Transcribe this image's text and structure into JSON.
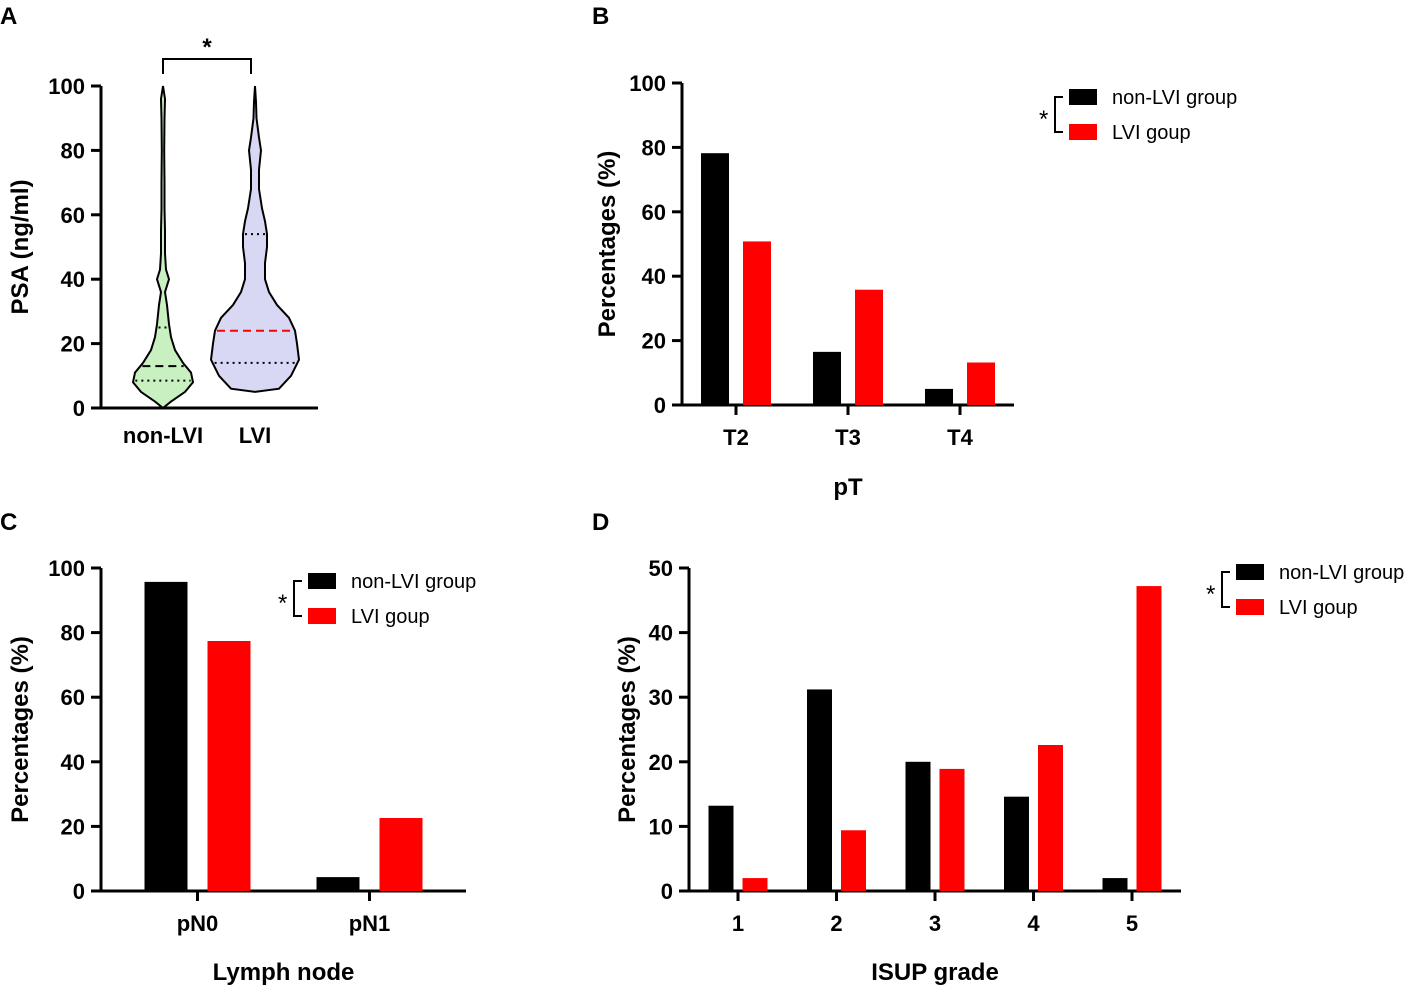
{
  "chart_data": [
    {
      "panel": "A",
      "type": "violin",
      "ylabel": "PSA (ng/ml)",
      "ylim": [
        0,
        100
      ],
      "yticks": [
        0,
        20,
        40,
        60,
        80,
        100
      ],
      "categories": [
        "non-LVI",
        "LVI"
      ],
      "series": [
        {
          "name": "non-LVI",
          "color": "#c8f0c0",
          "min": 0,
          "max": 100,
          "q1": 8.5,
          "median": 13,
          "q3": 25
        },
        {
          "name": "LVI",
          "color": "#d8d8f4",
          "min": 5,
          "max": 100,
          "q1": 14,
          "median": 24,
          "q3": 54
        }
      ],
      "significance": "*"
    },
    {
      "panel": "B",
      "type": "bar",
      "xlabel": "pT",
      "ylabel": "Percentages (%)",
      "ylim": [
        0,
        100
      ],
      "yticks": [
        0,
        20,
        40,
        60,
        80,
        100
      ],
      "categories": [
        "T2",
        "T3",
        "T4"
      ],
      "series": [
        {
          "name": "non-LVI group",
          "color": "#000000",
          "values": [
            78.2,
            16.5,
            5.0
          ]
        },
        {
          "name": "LVI goup",
          "color": "#ff0000",
          "values": [
            50.8,
            35.8,
            13.2
          ]
        }
      ],
      "significance": "*"
    },
    {
      "panel": "C",
      "type": "bar",
      "xlabel": "Lymph node",
      "ylabel": "Percentages (%)",
      "ylim": [
        0,
        100
      ],
      "yticks": [
        0,
        20,
        40,
        60,
        80,
        100
      ],
      "categories": [
        "pN0",
        "pN1"
      ],
      "series": [
        {
          "name": "non-LVI group",
          "color": "#000000",
          "values": [
            95.7,
            4.3
          ]
        },
        {
          "name": "LVI goup",
          "color": "#ff0000",
          "values": [
            77.4,
            22.6
          ]
        }
      ],
      "significance": "*"
    },
    {
      "panel": "D",
      "type": "bar",
      "xlabel": "ISUP grade",
      "ylabel": "Percentages (%)",
      "ylim": [
        0,
        50
      ],
      "yticks": [
        0,
        10,
        20,
        30,
        40,
        50
      ],
      "categories": [
        "1",
        "2",
        "3",
        "4",
        "5"
      ],
      "series": [
        {
          "name": "non-LVI group",
          "color": "#000000",
          "values": [
            13.2,
            31.2,
            20.0,
            14.6,
            2.0
          ]
        },
        {
          "name": "LVI goup",
          "color": "#ff0000",
          "values": [
            2.0,
            9.4,
            18.9,
            22.6,
            47.2
          ]
        }
      ],
      "significance": "*"
    }
  ]
}
